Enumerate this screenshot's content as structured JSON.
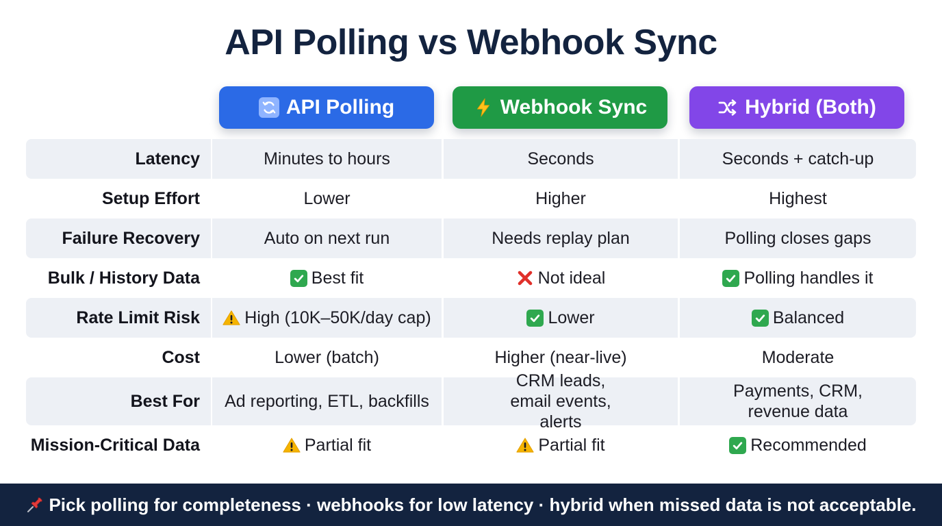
{
  "title": "API Polling vs Webhook Sync",
  "columns": [
    {
      "label": "API Polling",
      "icon": "refresh-icon",
      "color": "#2b6ae6"
    },
    {
      "label": "Webhook Sync",
      "icon": "lightning-icon",
      "color": "#1f9a45"
    },
    {
      "label": "Hybrid (Both)",
      "icon": "shuffle-icon",
      "color": "#8246e8"
    }
  ],
  "rows": [
    {
      "label": "Latency",
      "values": [
        "Minutes to hours",
        "Seconds",
        "Seconds + catch-up"
      ],
      "marks": [
        "",
        "",
        ""
      ]
    },
    {
      "label": "Setup Effort",
      "values": [
        "Lower",
        "Higher",
        "Highest"
      ],
      "marks": [
        "",
        "",
        ""
      ]
    },
    {
      "label": "Failure Recovery",
      "values": [
        "Auto on next run",
        "Needs replay plan",
        "Polling closes gaps"
      ],
      "marks": [
        "",
        "",
        ""
      ]
    },
    {
      "label": "Bulk / History Data",
      "values": [
        "Best fit",
        "Not ideal",
        "Polling handles it"
      ],
      "marks": [
        "check-icon",
        "cross-icon",
        "check-icon"
      ]
    },
    {
      "label": "Rate Limit Risk",
      "values": [
        "High (10K–50K/day cap)",
        "Lower",
        "Balanced"
      ],
      "marks": [
        "warning-icon",
        "check-icon",
        "check-icon"
      ]
    },
    {
      "label": "Cost",
      "values": [
        "Lower (batch)",
        "Higher (near-live)",
        "Moderate"
      ],
      "marks": [
        "",
        "",
        ""
      ]
    },
    {
      "label": "Best For",
      "values": [
        "Ad reporting, ETL, backfills",
        "CRM leads, email events, alerts",
        "Payments, CRM, revenue data"
      ],
      "marks": [
        "",
        "",
        ""
      ]
    },
    {
      "label": "Mission-Critical Data",
      "values": [
        "Partial fit",
        "Partial fit",
        "Recommended"
      ],
      "marks": [
        "warning-icon",
        "warning-icon",
        "check-icon"
      ]
    }
  ],
  "footer": {
    "icon": "pushpin-icon",
    "text": "Pick polling for completeness · webhooks for low latency · hybrid when missed data is not acceptable."
  },
  "colors": {
    "title": "#13233f",
    "row_shade": "#edf0f5",
    "footer_bg": "#13233f",
    "check": "#2fa84f",
    "cross": "#e0302a",
    "warning": "#f5b400"
  }
}
